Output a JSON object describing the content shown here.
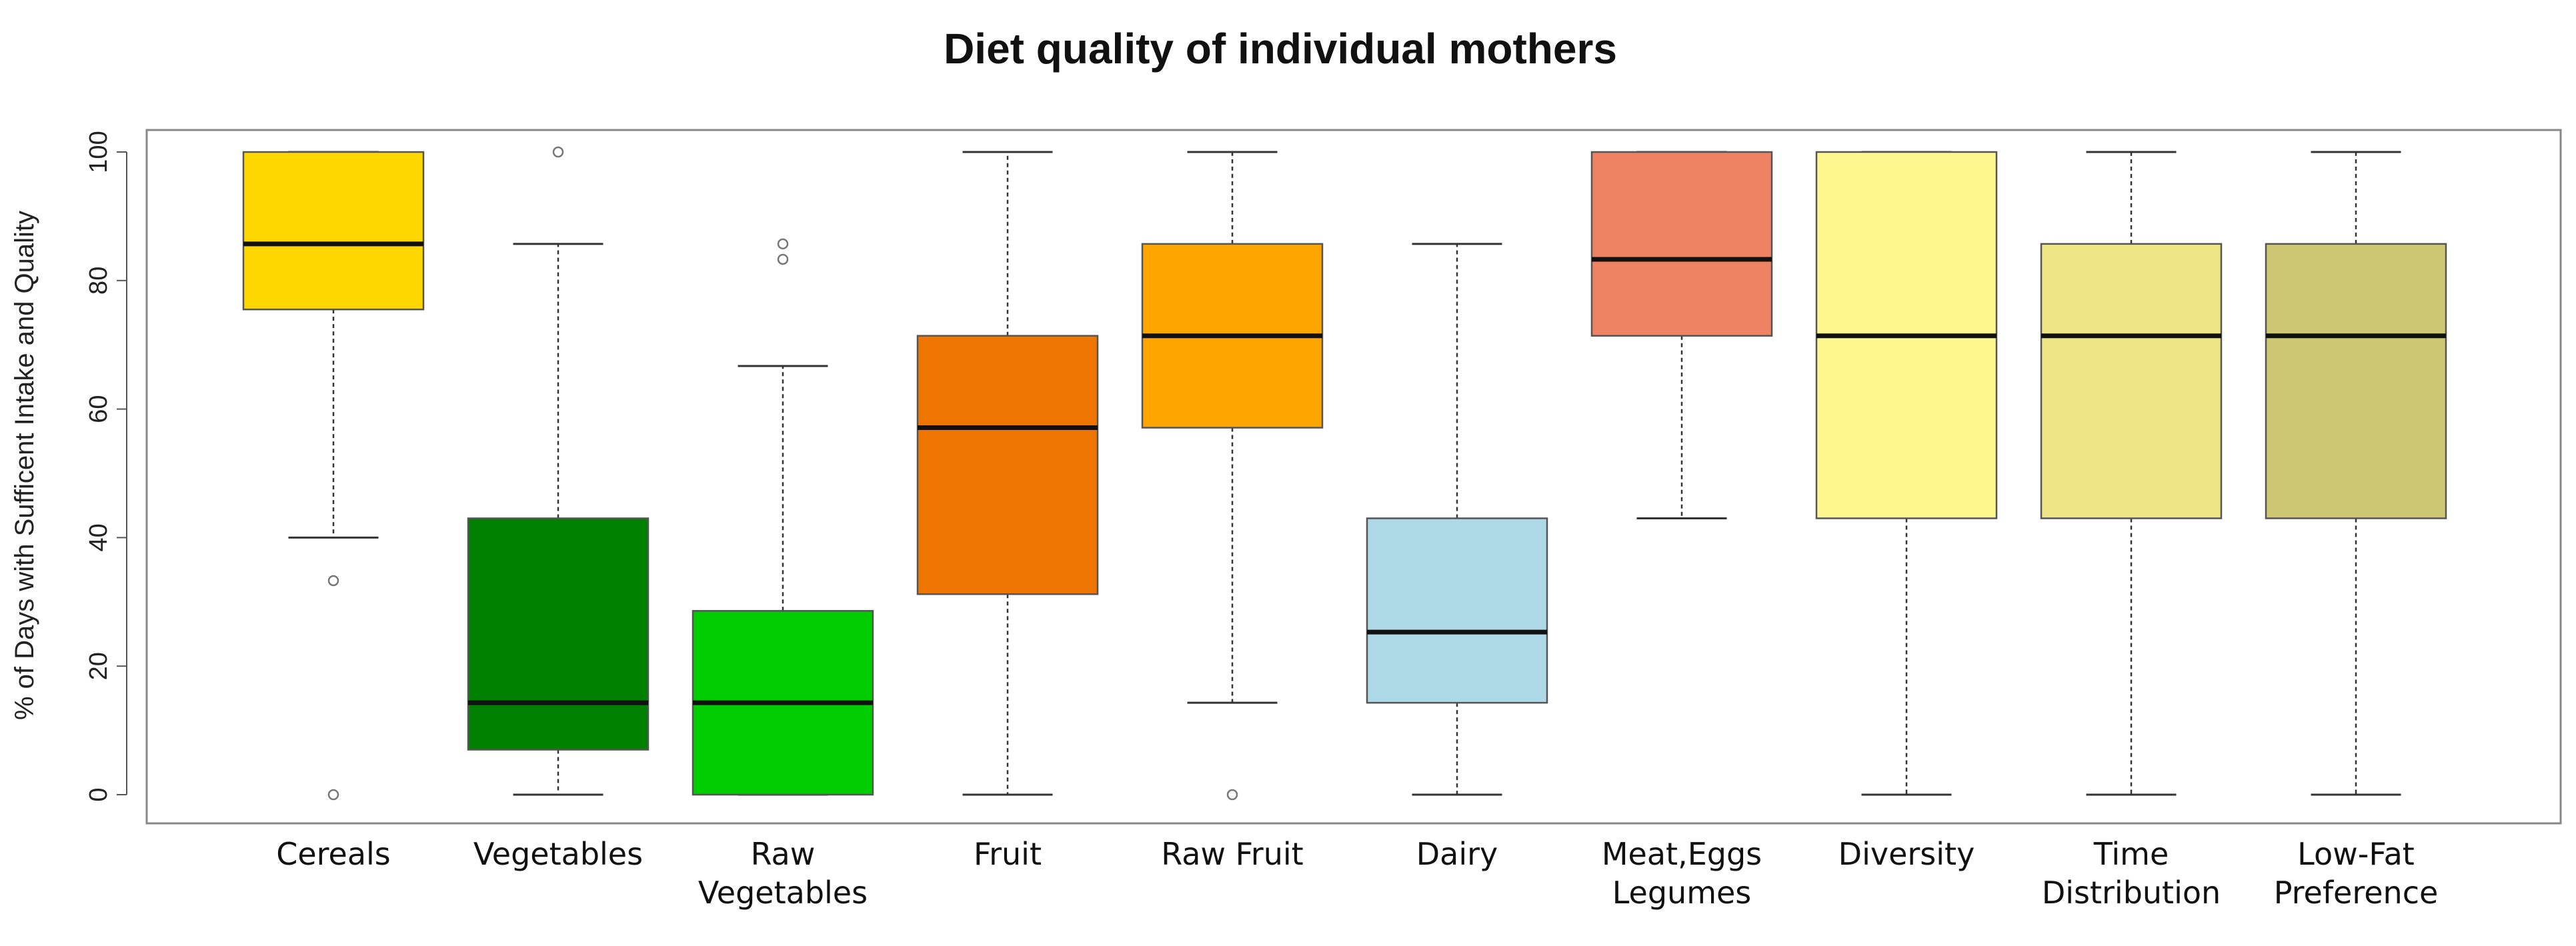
{
  "chart_data": {
    "type": "boxplot",
    "title": "Diet quality of individual mothers",
    "xlabel": "",
    "ylabel": "% of Days with Sufficent Intake and Quality",
    "ylim": [
      0,
      100
    ],
    "yticks": [
      0,
      20,
      40,
      60,
      80,
      100
    ],
    "grid": false,
    "categories": [
      {
        "label": [
          "Cereals"
        ],
        "color": "#FFD700",
        "whisker_low": 40,
        "q1": 75.5,
        "median": 85.7,
        "q3": 100,
        "whisker_high": 100,
        "outliers": [
          33.3,
          0
        ]
      },
      {
        "label": [
          "Vegetables"
        ],
        "color": "#008000",
        "whisker_low": 0,
        "q1": 7,
        "median": 14.3,
        "q3": 43,
        "whisker_high": 85.7,
        "outliers": [
          100
        ]
      },
      {
        "label": [
          "Raw",
          "Vegetables"
        ],
        "color": "#00CD00",
        "whisker_low": 0,
        "q1": 0,
        "median": 14.3,
        "q3": 28.6,
        "whisker_high": 66.7,
        "outliers": [
          85.7,
          83.3
        ]
      },
      {
        "label": [
          "Fruit"
        ],
        "color": "#EE7600",
        "whisker_low": 0,
        "q1": 31.2,
        "median": 57.1,
        "q3": 71.4,
        "whisker_high": 100,
        "outliers": []
      },
      {
        "label": [
          "Raw Fruit"
        ],
        "color": "#FFA500",
        "whisker_low": 14.3,
        "q1": 57.1,
        "median": 71.4,
        "q3": 85.7,
        "whisker_high": 100,
        "outliers": [
          0
        ]
      },
      {
        "label": [
          "Dairy"
        ],
        "color": "#ADD8E6",
        "whisker_low": 0,
        "q1": 14.3,
        "median": 25.3,
        "q3": 43,
        "whisker_high": 85.7,
        "outliers": []
      },
      {
        "label": [
          "Meat,Eggs",
          "Legumes"
        ],
        "color": "#EE8262",
        "whisker_low": 43,
        "q1": 71.4,
        "median": 83.3,
        "q3": 100,
        "whisker_high": 100,
        "outliers": []
      },
      {
        "label": [
          "Diversity"
        ],
        "color": "#FFF68F",
        "whisker_low": 0,
        "q1": 43,
        "median": 71.4,
        "q3": 100,
        "whisker_high": 100,
        "outliers": []
      },
      {
        "label": [
          "Time",
          "Distribution"
        ],
        "color": "#EEE685",
        "whisker_low": 0,
        "q1": 43,
        "median": 71.4,
        "q3": 85.7,
        "whisker_high": 100,
        "outliers": []
      },
      {
        "label": [
          "Low-Fat",
          "Preference"
        ],
        "color": "#CDC673",
        "whisker_low": 0,
        "q1": 43,
        "median": 71.4,
        "q3": 85.7,
        "whisker_high": 100,
        "outliers": []
      }
    ]
  }
}
